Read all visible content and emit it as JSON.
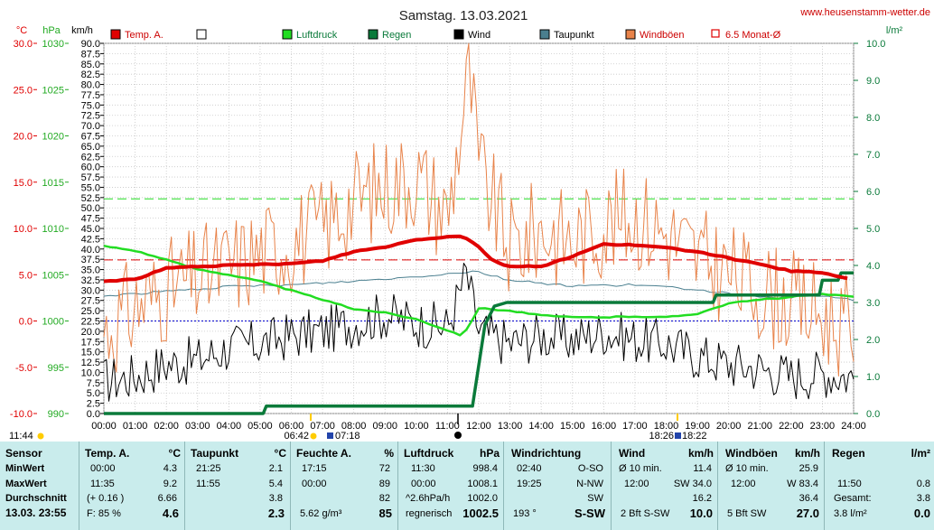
{
  "header": {
    "title": "Samstag. 13.03.2021",
    "site": "www.heusenstamm-wetter.de",
    "unit_temp": "°C",
    "unit_pressure": "hPa",
    "unit_wind": "km/h",
    "unit_rain": "l/m²"
  },
  "legend": [
    {
      "label": "Temp. A.",
      "color": "#e00000",
      "kind": "box"
    },
    {
      "label": "",
      "color": "#ffffff",
      "kind": "box"
    },
    {
      "label": "Luftdruck",
      "color": "#22dd22",
      "kind": "box"
    },
    {
      "label": "Regen",
      "color": "#0a7a3a",
      "kind": "box"
    },
    {
      "label": "Wind",
      "color": "#000000",
      "kind": "box"
    },
    {
      "label": "Taupunkt",
      "color": "#4a7f8f",
      "kind": "box"
    },
    {
      "label": "Windböen",
      "color": "#e8834a",
      "kind": "box"
    },
    {
      "label": "6.5 Monat-Ø",
      "color": "#e00000",
      "kind": "outline"
    }
  ],
  "chart_data": {
    "type": "line",
    "title": "Samstag. 13.03.2021",
    "x_ticks": [
      "00:00",
      "01:00",
      "02:00",
      "03:00",
      "04:00",
      "05:00",
      "06:00",
      "07:00",
      "08:00",
      "09:00",
      "10:00",
      "11:00",
      "12:00",
      "13:00",
      "14:00",
      "15:00",
      "16:00",
      "17:00",
      "18:00",
      "19:00",
      "20:00",
      "21:00",
      "22:00",
      "23:00",
      "24:00"
    ],
    "axes": {
      "temp_ticks": [
        "30.0",
        "25.0",
        "20.0",
        "15.0",
        "10.0",
        "5.0",
        "0.0",
        "-5.0",
        "-10.0"
      ],
      "pressure_ticks": [
        "1030",
        "1025",
        "1020",
        "1015",
        "1010",
        "1005",
        "1000",
        "995",
        "990"
      ],
      "wind_ticks": [
        "90.0",
        "87.5",
        "85.0",
        "82.5",
        "80.0",
        "77.5",
        "75.0",
        "72.5",
        "70.0",
        "67.5",
        "65.0",
        "62.5",
        "60.0",
        "57.5",
        "55.0",
        "52.5",
        "50.0",
        "47.5",
        "45.0",
        "42.5",
        "40.0",
        "37.5",
        "35.0",
        "32.5",
        "30.0",
        "27.5",
        "25.0",
        "22.5",
        "20.0",
        "17.5",
        "15.0",
        "12.5",
        "10.0",
        "7.5",
        "5.0",
        "2.5",
        "0.0"
      ],
      "rain_ticks": [
        "10.0",
        "9.0",
        "8.0",
        "7.0",
        "6.0",
        "5.0",
        "4.0",
        "3.0",
        "2.0",
        "1.0",
        "0.0"
      ],
      "temp_range": [
        -10,
        30
      ],
      "wind_range": [
        0,
        90
      ],
      "pressure_range": [
        990,
        1030
      ],
      "rain_range": [
        0,
        10
      ],
      "grid": true
    },
    "series": [
      {
        "name": "Temp. A.",
        "axis": "temp",
        "color": "#e00000",
        "x": [
          0,
          1,
          2,
          3,
          4,
          5,
          6,
          7,
          8,
          9,
          10,
          11,
          11.5,
          12,
          12.5,
          13,
          14,
          15,
          16,
          17,
          18,
          19,
          20,
          21,
          22,
          23,
          23.9
        ],
        "y": [
          4.3,
          4.5,
          5.7,
          5.9,
          6.0,
          6.1,
          6.2,
          6.5,
          7.5,
          8.0,
          8.8,
          9.1,
          9.2,
          8.0,
          6.4,
          5.9,
          5.9,
          7.0,
          8.3,
          8.2,
          7.9,
          7.5,
          6.8,
          6.1,
          5.4,
          5.2,
          4.5
        ]
      },
      {
        "name": "Luftdruck",
        "axis": "pressure",
        "color": "#22dd22",
        "x": [
          0,
          1,
          2,
          3,
          4,
          5,
          6,
          7,
          8,
          9,
          10,
          11,
          11.5,
          12,
          13,
          14,
          15,
          16,
          17,
          18,
          19,
          20,
          21,
          22,
          23,
          24
        ],
        "y": [
          1008.1,
          1007.6,
          1006.6,
          1005.6,
          1005.0,
          1004.3,
          1003.3,
          1002.3,
          1001.3,
          1000.9,
          1000.2,
          999.0,
          998.4,
          1001.4,
          1001.1,
          1000.6,
          1000.4,
          1000.4,
          1000.5,
          1000.4,
          1000.8,
          1001.9,
          1002.3,
          1002.6,
          1002.9,
          1002.6
        ]
      },
      {
        "name": "Taupunkt",
        "axis": "temp",
        "color": "#4a7f8f",
        "x": [
          0,
          2,
          4,
          6,
          8,
          10,
          11.9,
          13,
          15,
          17,
          19,
          21,
          23,
          24
        ],
        "y": [
          2.7,
          3.2,
          3.7,
          3.9,
          4.3,
          4.8,
          5.4,
          4.4,
          3.8,
          3.9,
          3.4,
          2.5,
          2.7,
          2.3
        ]
      },
      {
        "name": "Regen",
        "axis": "rain",
        "color": "#0a7a3a",
        "x": [
          0,
          5.1,
          5.2,
          11.8,
          12.2,
          12.5,
          12.9,
          13.2,
          19.5,
          19.6,
          22.9,
          23.0,
          23.5,
          23.6,
          24
        ],
        "y": [
          0,
          0,
          0.2,
          0.2,
          2.4,
          2.9,
          3.0,
          3.0,
          3.0,
          3.2,
          3.2,
          3.6,
          3.6,
          3.8,
          3.8
        ]
      },
      {
        "name": "Wind",
        "axis": "wind",
        "color": "#000000",
        "x": [
          0,
          1,
          2,
          3,
          4,
          5,
          6,
          7,
          8,
          9,
          10,
          11,
          11.6,
          12,
          13,
          14,
          15,
          16,
          17,
          18,
          19,
          20,
          21,
          22,
          23,
          24
        ],
        "y": [
          8,
          9,
          12,
          13,
          16,
          17,
          19,
          20,
          22,
          24,
          22,
          21,
          34,
          20,
          17,
          19,
          18,
          20,
          18,
          17,
          14,
          12,
          11,
          9,
          10,
          9
        ]
      },
      {
        "name": "Windböen",
        "axis": "wind",
        "color": "#e8834a",
        "x": [
          0,
          1,
          2,
          3,
          4,
          5,
          6,
          7,
          8,
          9,
          10,
          11,
          11.7,
          12,
          13,
          14,
          15,
          16,
          17,
          18,
          19,
          20,
          21,
          22,
          23,
          24
        ],
        "y": [
          20,
          26,
          30,
          33,
          36,
          39,
          42,
          45,
          52,
          55,
          58,
          48,
          83,
          60,
          40,
          45,
          42,
          46,
          48,
          44,
          38,
          34,
          30,
          27,
          24,
          20
        ]
      }
    ],
    "reference_lines": [
      {
        "label": "6.5 Monat-Ø",
        "axis": "temp",
        "value": 6.6,
        "color": "#e00000"
      },
      {
        "label": "6.5 Monat-Ø",
        "axis": "temp",
        "value": 0.0,
        "color": "#0000cc"
      },
      {
        "label": "6.5 Monat-Ø",
        "axis": "rain",
        "value": 5.8,
        "color": "#22dd22"
      }
    ]
  },
  "markers": {
    "min_time": "11:44",
    "sunrise": "06:42",
    "sunrise2": "07:18",
    "sunset": "18:26",
    "sunset2": "18:22"
  },
  "table": {
    "sensor": {
      "h": "Sensor",
      "min": "MinWert",
      "max": "MaxWert",
      "avg": "Durchschnitt",
      "date": "13.03. 23:55"
    },
    "temp": {
      "h": "Temp. A.",
      "u": "°C",
      "min_t": "00:00",
      "min_v": "4.3",
      "max_t": "11:35",
      "max_v": "9.2",
      "avg_t": "(+ 0.16 )",
      "avg_v": "6.66",
      "last_t": "F: 85 %",
      "last_v": "4.6"
    },
    "dew": {
      "h": "Taupunkt",
      "u": "°C",
      "min_t": "21:25",
      "min_v": "2.1",
      "max_t": "11:55",
      "max_v": "5.4",
      "avg_v": "3.8",
      "last_v": "2.3"
    },
    "hum": {
      "h": "Feuchte A.",
      "u": "%",
      "min_t": "17:15",
      "min_v": "72",
      "max_t": "00:00",
      "max_v": "89",
      "avg_v": "82",
      "last_t": "5.62 g/m³",
      "last_v": "85"
    },
    "press": {
      "h": "Luftdruck",
      "u": "hPa",
      "min_t": "11:30",
      "min_v": "998.4",
      "max_t": "00:00",
      "max_v": "1008.1",
      "avg_t": "^2.6hPa/h",
      "avg_v": "1002.0",
      "last_t": "regnerisch",
      "last_v": "1002.5"
    },
    "dir": {
      "h": "Windrichtung",
      "min_t": "02:40",
      "min_v": "O-SO",
      "max_t": "19:25",
      "max_v": "N-NW",
      "avg_v": "SW",
      "last_t": "193 °",
      "last_v": "S-SW"
    },
    "wind": {
      "h": "Wind",
      "u": "km/h",
      "min_t": "Ø 10 min.",
      "min_v": "11.4",
      "max_t": "12:00",
      "max_v": "SW 34.0",
      "avg_v": "16.2",
      "last_t": "2 Bft S-SW",
      "last_v": "10.0"
    },
    "gust": {
      "h": "Windböen",
      "u": "km/h",
      "min_t": "Ø 10 min.",
      "min_v": "25.9",
      "max_t": "12:00",
      "max_v": "W 83.4",
      "avg_v": "36.4",
      "last_t": "5 Bft SW",
      "last_v": "27.0"
    },
    "rain": {
      "h": "Regen",
      "u": "l/m²",
      "max_t": "11:50",
      "max_v": "0.8",
      "avg_t": "Gesamt:",
      "avg_v": "3.8",
      "last_t": "3.8 l/m²",
      "last_v": "0.0"
    }
  }
}
